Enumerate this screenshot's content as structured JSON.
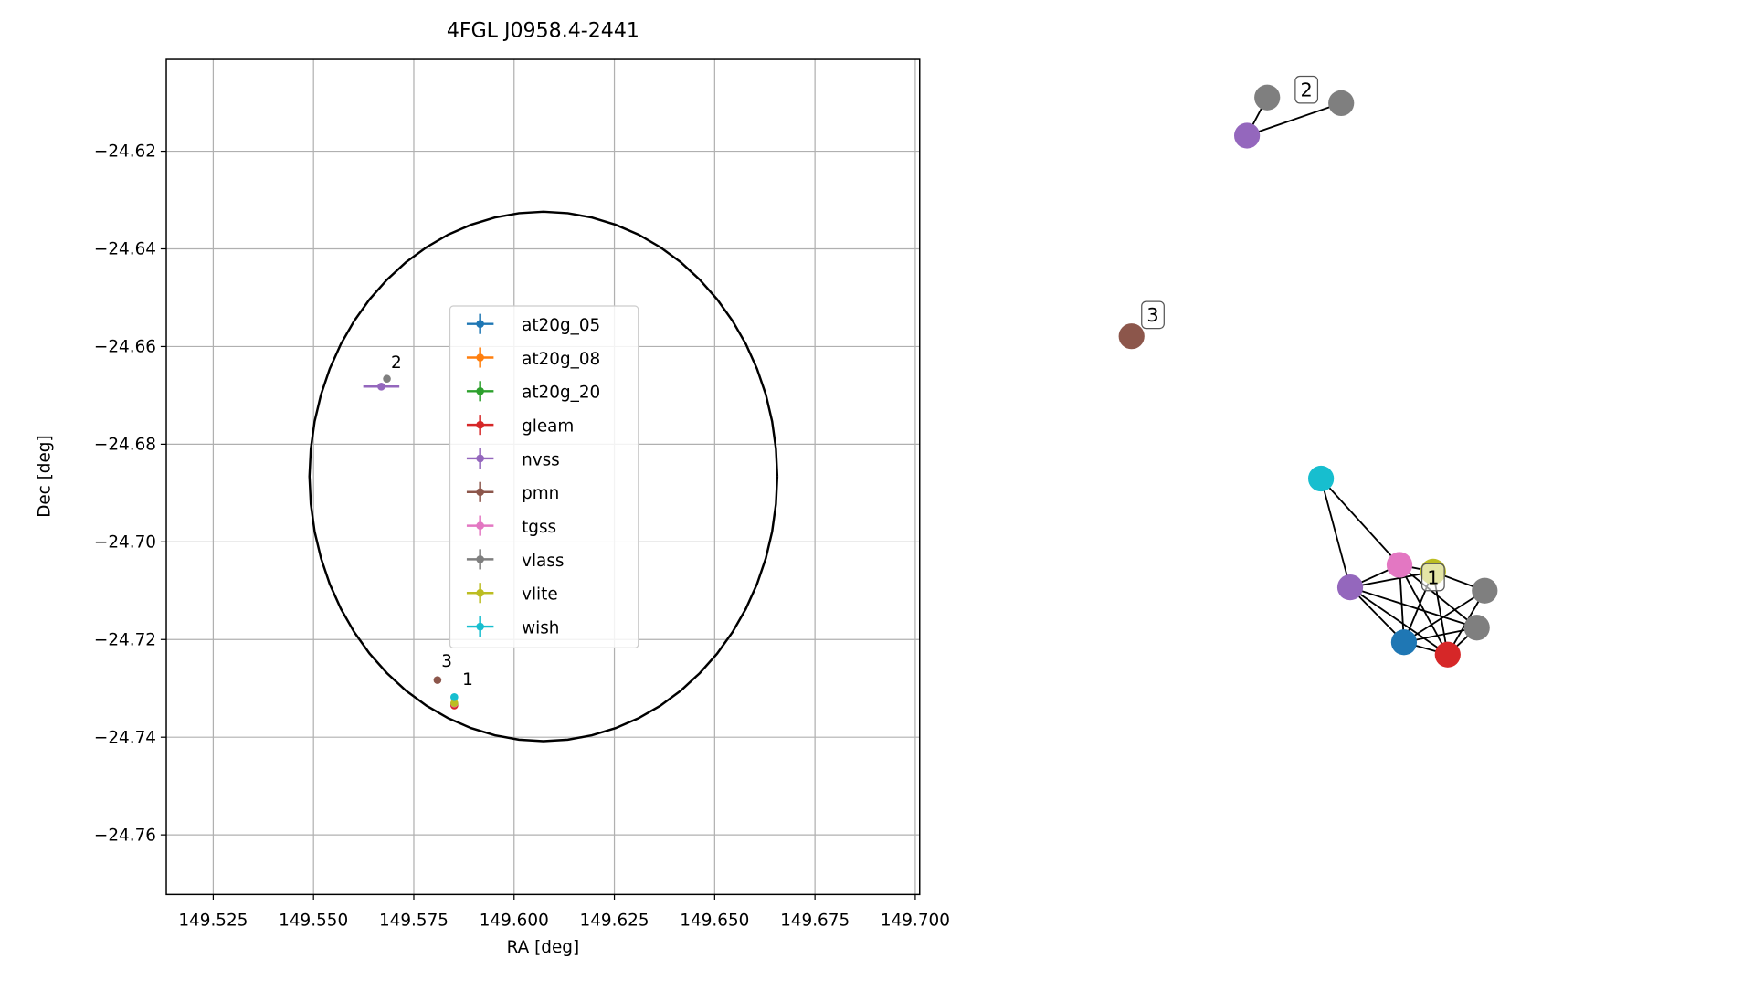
{
  "chart_data": {
    "type": "scatter",
    "title": "4FGL J0958.4-2441",
    "x_label": "RA [deg]",
    "y_label": "Dec [deg]",
    "xlim": [
      149.5133,
      149.7011
    ],
    "ylim": [
      -24.7722,
      -24.6012
    ],
    "xticks": [
      {
        "value": 149.525,
        "label": "149.525"
      },
      {
        "value": 149.55,
        "label": "149.550"
      },
      {
        "value": 149.575,
        "label": "149.575"
      },
      {
        "value": 149.6,
        "label": "149.600"
      },
      {
        "value": 149.625,
        "label": "149.625"
      },
      {
        "value": 149.65,
        "label": "149.650"
      },
      {
        "value": 149.675,
        "label": "149.675"
      },
      {
        "value": 149.7,
        "label": "149.700"
      }
    ],
    "yticks": [
      {
        "value": -24.62,
        "label": "−24.62"
      },
      {
        "value": -24.64,
        "label": "−24.64"
      },
      {
        "value": -24.66,
        "label": "−24.66"
      },
      {
        "value": -24.68,
        "label": "−24.68"
      },
      {
        "value": -24.7,
        "label": "−24.70"
      },
      {
        "value": -24.72,
        "label": "−24.72"
      },
      {
        "value": -24.74,
        "label": "−24.74"
      },
      {
        "value": -24.76,
        "label": "−24.76"
      }
    ],
    "grid": true,
    "ellipse": {
      "center": [
        149.6073,
        -24.6866
      ],
      "width": 0.0583,
      "height": 0.0542,
      "color": "#000000"
    },
    "series": [
      {
        "name": "at20g_05",
        "color": "#1f77b4",
        "x": [
          149.5851
        ],
        "values": [
          -24.7332
        ]
      },
      {
        "name": "at20g_08",
        "color": "#ff7f0e",
        "x": [
          149.5851
        ],
        "values": [
          -24.7334
        ]
      },
      {
        "name": "at20g_20",
        "color": "#2ca02c",
        "x": [
          149.5851
        ],
        "values": [
          -24.7333
        ]
      },
      {
        "name": "gleam",
        "color": "#d62728",
        "x": [
          149.5851
        ],
        "values": [
          -24.7335
        ]
      },
      {
        "name": "nvss",
        "color": "#9467bd",
        "x": [
          149.5669
        ],
        "values": [
          -24.6682
        ],
        "xerr": [
          0.0045
        ]
      },
      {
        "name": "pmn",
        "color": "#8c564b",
        "x": [
          149.5809
        ],
        "values": [
          -24.7283
        ]
      },
      {
        "name": "tgss",
        "color": "#e377c2",
        "x": [
          149.5851
        ],
        "values": [
          -24.7331
        ]
      },
      {
        "name": "vlass",
        "color": "#7f7f7f",
        "x": [
          149.5683
        ],
        "values": [
          -24.6666
        ]
      },
      {
        "name": "vlite",
        "color": "#bcbd22",
        "x": [
          149.5851
        ],
        "values": [
          -24.733
        ]
      },
      {
        "name": "wish",
        "color": "#17becf",
        "x": [
          149.5851
        ],
        "values": [
          -24.7318
        ]
      }
    ],
    "annotations": [
      {
        "text": "1",
        "x": 149.5871,
        "y": -24.7293
      },
      {
        "text": "2",
        "x": 149.5693,
        "y": -24.6644
      },
      {
        "text": "3",
        "x": 149.5819,
        "y": -24.7256
      }
    ],
    "graph": {
      "node_colors": [
        "#7f7f7f",
        "#7f7f7f",
        "#9467bd",
        "#8c564b",
        "#17becf",
        "#e377c2",
        "#bcbd22",
        "#7f7f7f",
        "#9467bd",
        "#7f7f7f",
        "#1f77b4",
        "#d62728"
      ],
      "edges": [
        [
          2,
          0
        ],
        [
          2,
          1
        ],
        [
          4,
          5
        ],
        [
          4,
          8
        ],
        [
          5,
          8
        ],
        [
          5,
          10
        ],
        [
          5,
          11
        ],
        [
          5,
          6
        ],
        [
          8,
          10
        ],
        [
          8,
          11
        ],
        [
          8,
          6
        ],
        [
          10,
          11
        ],
        [
          10,
          6
        ],
        [
          11,
          6
        ],
        [
          6,
          7
        ],
        [
          7,
          10
        ],
        [
          7,
          11
        ],
        [
          9,
          10
        ],
        [
          9,
          11
        ],
        [
          9,
          5
        ],
        [
          9,
          8
        ]
      ],
      "labels": [
        "2",
        "3",
        "1"
      ]
    }
  }
}
